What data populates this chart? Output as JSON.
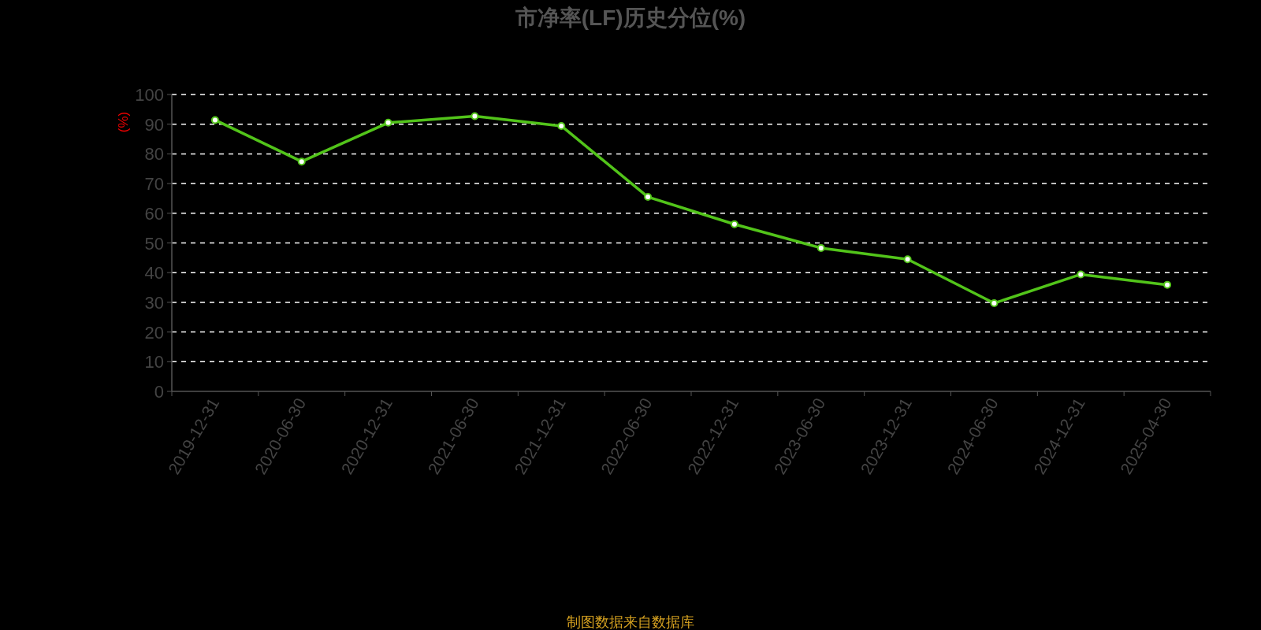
{
  "chart_data": {
    "type": "line",
    "title": "市净率(LF)历史分位(%)",
    "ylabel": "(%)",
    "categories": [
      "2019-12-31",
      "2020-06-30",
      "2020-12-31",
      "2021-06-30",
      "2021-12-31",
      "2022-06-30",
      "2022-12-31",
      "2023-06-30",
      "2023-12-31",
      "2024-06-30",
      "2024-12-31",
      "2025-04-30"
    ],
    "series": [
      {
        "color": "#52c41a",
        "values": [
          91.4,
          77.4,
          90.5,
          92.7,
          89.4,
          65.5,
          56.3,
          48.3,
          44.5,
          29.7,
          39.4,
          35.9
        ]
      }
    ],
    "ylim": [
      0,
      100
    ],
    "yticks": [
      0,
      10,
      20,
      30,
      40,
      50,
      60,
      70,
      80,
      90,
      100
    ],
    "grid": "y",
    "marker": "circle",
    "line_style": "solid",
    "annotations": [
      "制图数据来自数据库"
    ]
  }
}
